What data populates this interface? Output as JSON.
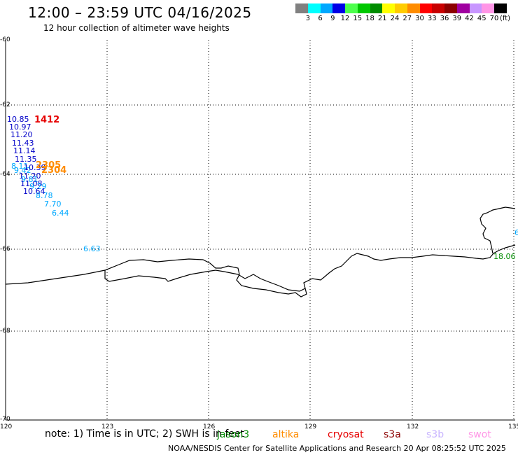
{
  "title": "12:00 – 23:59 UTC 04/16/2025",
  "subtitle": "12 hour collection of altimeter wave heights",
  "credit": "NOAA/NESDIS Center for Satellite Applications and Research   20 Apr 08:25:52 UTC 2025",
  "note": "note:  1) Time is in UTC; 2) SWH is in feet",
  "legend": {
    "unit": "(ft)",
    "bins": [
      {
        "label": "3",
        "color": "#808080"
      },
      {
        "label": "6",
        "color": "#00ffff"
      },
      {
        "label": "9",
        "color": "#00a8ff"
      },
      {
        "label": "12",
        "color": "#0000e6"
      },
      {
        "label": "15",
        "color": "#4cff4c"
      },
      {
        "label": "18",
        "color": "#00c800"
      },
      {
        "label": "21",
        "color": "#008c00"
      },
      {
        "label": "24",
        "color": "#ffff00"
      },
      {
        "label": "27",
        "color": "#ffcc00"
      },
      {
        "label": "30",
        "color": "#ff8c00"
      },
      {
        "label": "33",
        "color": "#ff0000"
      },
      {
        "label": "36",
        "color": "#c80000"
      },
      {
        "label": "39",
        "color": "#8c0000"
      },
      {
        "label": "42",
        "color": "#a000a0"
      },
      {
        "label": "45",
        "color": "#c896ff"
      },
      {
        "label": "70",
        "color": "#ff96e6"
      },
      {
        "label": "",
        "color": "#000000"
      }
    ]
  },
  "axes": {
    "lat_labels": [
      "-60",
      "-62",
      "-64",
      "-66",
      "-68",
      "-70"
    ],
    "lon_labels": [
      "120",
      "123",
      "126",
      "129",
      "132",
      "135"
    ]
  },
  "satellites": [
    {
      "name": "jason3",
      "color": "#008c00"
    },
    {
      "name": "altika",
      "color": "#ff8c00"
    },
    {
      "name": "cryosat",
      "color": "#e60000"
    },
    {
      "name": "s3a",
      "color": "#8c0000"
    },
    {
      "name": "s3b",
      "color": "#c8b4ff"
    },
    {
      "name": "swot",
      "color": "#ff96e6"
    }
  ],
  "pass_times": [
    {
      "text": "1412",
      "color": "#e60000"
    },
    {
      "text": "2305",
      "color": "#ff8c00"
    },
    {
      "text": "2304",
      "color": "#ff8c00"
    }
  ],
  "observations": [
    {
      "text": "10.85",
      "color": "#0000c8"
    },
    {
      "text": "10.97",
      "color": "#0000c8"
    },
    {
      "text": "11.20",
      "color": "#0000c8"
    },
    {
      "text": "11.43",
      "color": "#0000c8"
    },
    {
      "text": "11.14",
      "color": "#0000c8"
    },
    {
      "text": "11.35",
      "color": "#0000c8"
    },
    {
      "text": "8.11",
      "color": "#00a8ff"
    },
    {
      "text": "9.42",
      "color": "#00a8ff"
    },
    {
      "text": "10.39",
      "color": "#0000c8"
    },
    {
      "text": "11.20",
      "color": "#0000c8"
    },
    {
      "text": "9.81",
      "color": "#00a8ff"
    },
    {
      "text": "11.08",
      "color": "#0000c8"
    },
    {
      "text": "9.29",
      "color": "#00a8ff"
    },
    {
      "text": "10.64",
      "color": "#0000c8"
    },
    {
      "text": "8.78",
      "color": "#00a8ff"
    },
    {
      "text": "7.70",
      "color": "#00a8ff"
    },
    {
      "text": "6.44",
      "color": "#00a8ff"
    },
    {
      "text": "6.63",
      "color": "#00a8ff"
    },
    {
      "text": "18.06",
      "color": "#008c00"
    },
    {
      "text": "6",
      "color": "#00a8ff"
    }
  ]
}
